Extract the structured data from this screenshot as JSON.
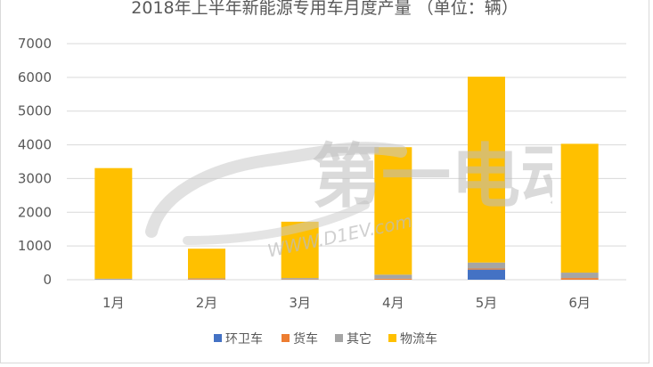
{
  "chart_data": {
    "type": "bar",
    "stacked": true,
    "title": "2018年上半年新能源专用车月度产量 （单位：辆）",
    "categories": [
      "1月",
      "2月",
      "3月",
      "4月",
      "5月",
      "6月"
    ],
    "ylim": [
      0,
      7000
    ],
    "yticks": [
      "0",
      "1000",
      "2000",
      "3000",
      "4000",
      "5000",
      "6000",
      "7000"
    ],
    "grid": true,
    "legend_position": "bottom",
    "series": [
      {
        "name": "环卫车",
        "color": "#4472c4",
        "values": [
          0,
          0,
          0,
          0,
          300,
          0
        ]
      },
      {
        "name": "货车",
        "color": "#ed7d31",
        "values": [
          0,
          20,
          10,
          30,
          30,
          50
        ]
      },
      {
        "name": "其它",
        "color": "#a5a5a5",
        "values": [
          30,
          20,
          40,
          120,
          180,
          160
        ]
      },
      {
        "name": "物流车",
        "color": "#ffc000",
        "values": [
          3280,
          880,
          1670,
          3780,
          5510,
          3820
        ]
      }
    ]
  },
  "watermark": {
    "text": "WWW.D1EV.com",
    "logo": "第一电动"
  }
}
